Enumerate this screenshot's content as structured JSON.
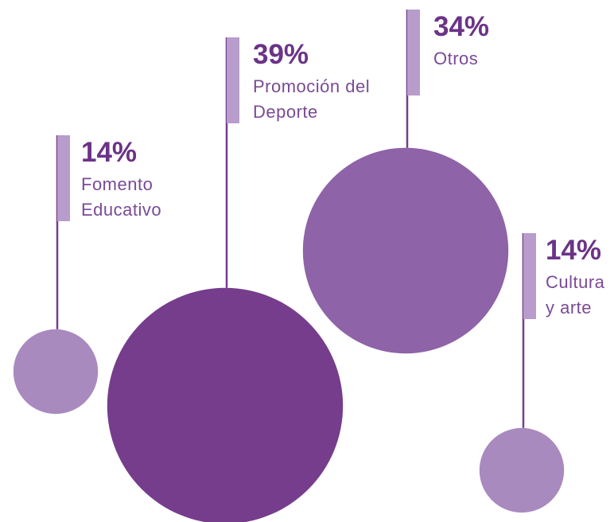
{
  "chart_data": {
    "type": "bubble",
    "categories": [
      "Fomento Educativo",
      "Promoción del Deporte",
      "Otros",
      "Cultura y arte"
    ],
    "values": [
      14,
      39,
      34,
      14
    ],
    "value_labels": [
      "14%",
      "39%",
      "34%",
      "14%"
    ],
    "colors": [
      "#a98abf",
      "#763d8c",
      "#8e63a7",
      "#a98abf"
    ]
  }
}
